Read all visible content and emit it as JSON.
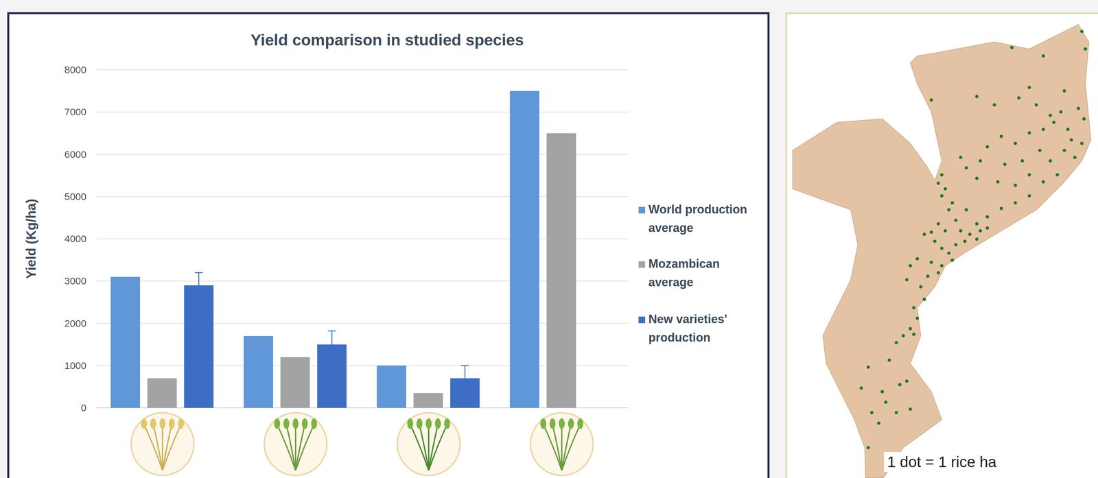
{
  "chart_data": {
    "type": "bar",
    "title": "Yield comparison in studied species",
    "y_label": "Yield (Kg/ha)",
    "categories": [
      null,
      null,
      null,
      null
    ],
    "series": [
      {
        "name": "World production average",
        "color": "#5f97d8",
        "values": [
          3100,
          1700,
          1000,
          7500
        ]
      },
      {
        "name": "Mozambican average",
        "color": "#a3a3a3",
        "values": [
          700,
          1200,
          350,
          6500
        ]
      },
      {
        "name": "New varieties' production",
        "color": "#3d6ec4",
        "values": [
          2900,
          1500,
          700,
          null
        ],
        "errors": [
          300,
          320,
          300,
          null
        ]
      }
    ],
    "ylim": [
      0,
      8000
    ],
    "yticks": [
      0,
      1000,
      2000,
      3000,
      4000,
      5000,
      6000,
      7000,
      8000
    ],
    "grid": true,
    "legend": "right"
  },
  "map": {
    "caption": "1 dot = 1 rice ha"
  }
}
